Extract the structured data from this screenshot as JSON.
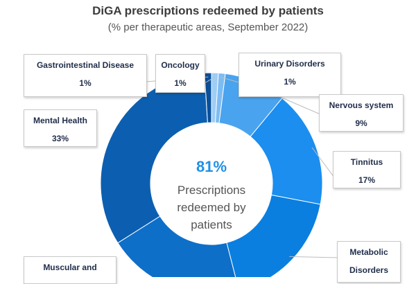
{
  "chart_data": {
    "type": "pie",
    "title": "DiGA prescriptions redeemed by patients",
    "subtitle": "(% per therapeutic areas, September 2022)",
    "center": {
      "value": "81%",
      "label": "Prescriptions redeemed by patients"
    },
    "slices": [
      {
        "label": "Oncology",
        "value": 1,
        "display": "1%",
        "color": "#9ecdf5"
      },
      {
        "label": "Urinary Disorders",
        "value": 1,
        "display": "1%",
        "color": "#7dbcf2"
      },
      {
        "label": "Nervous system",
        "value": 9,
        "display": "9%",
        "color": "#4aa3ee"
      },
      {
        "label": "Tinnitus",
        "value": 17,
        "display": "17%",
        "color": "#1b8ef0"
      },
      {
        "label": "Metabolic Disorders",
        "value": 18,
        "display": "",
        "color": "#0a7fe0"
      },
      {
        "label": "Muscular and Skeletal",
        "value": 20,
        "display": "",
        "color": "#0e6fc9"
      },
      {
        "label": "Mental Health",
        "value": 33,
        "display": "33%",
        "color": "#0c5fb0"
      },
      {
        "label": "Gastrointestinal Disease",
        "value": 1,
        "display": "1%",
        "color": "#0a4f9a"
      }
    ]
  },
  "callouts": {
    "gastro": {
      "name": "Gastrointestinal Disease",
      "pct": "1%"
    },
    "oncology": {
      "name": "Oncology",
      "pct": "1%"
    },
    "urinary": {
      "name": "Urinary Disorders",
      "pct": "1%"
    },
    "nervous": {
      "name": "Nervous system",
      "pct": "9%"
    },
    "mental": {
      "name": "Mental Health",
      "pct": "33%"
    },
    "tinnitus": {
      "name": "Tinnitus",
      "pct": "17%"
    },
    "metabolic": {
      "name": "Metabolic",
      "name2": "Disorders"
    },
    "muscular": {
      "name": "Muscular and"
    }
  }
}
